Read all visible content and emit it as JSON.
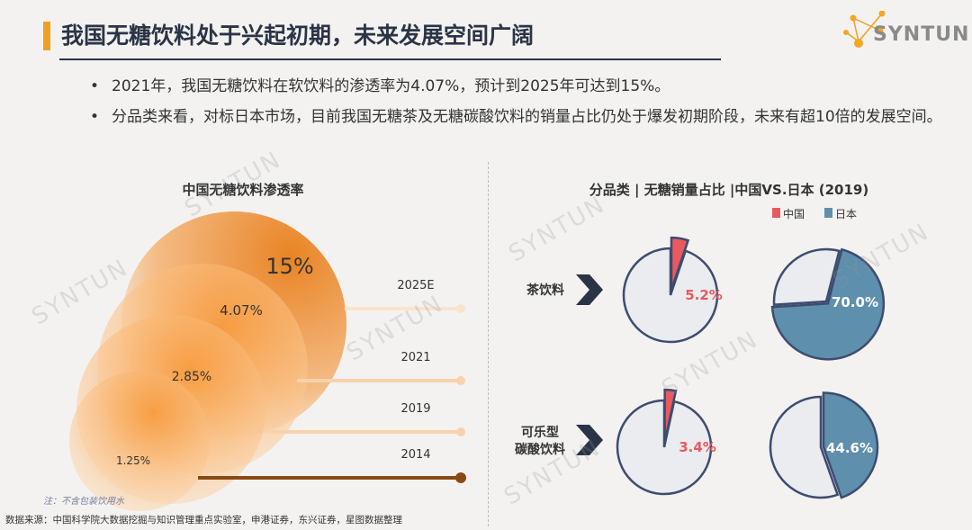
{
  "header": {
    "title": "我国无糖饮料处于兴起初期，未来发展空间广阔",
    "logo": "SYNTUN"
  },
  "bullets": [
    "2021年，我国无糖饮料在软饮料的渗透率为4.07%，预计到2025年可达到15%。",
    "分品类来看，对标日本市场，目前我国无糖茶及无糖碳酸饮料的销量占比仍处于爆发初期阶段，未来有超10倍的发展空间。"
  ],
  "note": "注：不含包装饮用水",
  "source": "数据来源：中国科学院大数据挖掘与知识管理重点实验室，申港证券，东兴证券，星图数据整理",
  "watermark": "SYNTUN",
  "chart_data": [
    {
      "type": "bubble",
      "title": "中国无糖饮料渗透率",
      "categories": [
        "2014",
        "2019",
        "2021",
        "2025E"
      ],
      "values": [
        1.25,
        2.85,
        4.07,
        15
      ],
      "value_labels": [
        "1.25%",
        "2.85%",
        "4.07%",
        "15%"
      ],
      "unit": "%",
      "color": "#e8832a"
    },
    {
      "type": "pie",
      "title": "分品类 | 无糖销量占比 |中国VS.日本 (2019)",
      "legend": [
        {
          "name": "中国",
          "color": "#e85a5f"
        },
        {
          "name": "日本",
          "color": "#5e8fac"
        }
      ],
      "legend_position": "top-right",
      "rows": [
        {
          "label": "茶饮料",
          "china": 5.2,
          "japan": 70.0,
          "china_label": "5.2%",
          "japan_label": "70.0%"
        },
        {
          "label": "可乐型碳酸饮料",
          "label_lines": [
            "可乐型",
            "碳酸饮料"
          ],
          "china": 3.4,
          "japan": 44.6,
          "china_label": "3.4%",
          "japan_label": "44.6%"
        }
      ]
    }
  ]
}
